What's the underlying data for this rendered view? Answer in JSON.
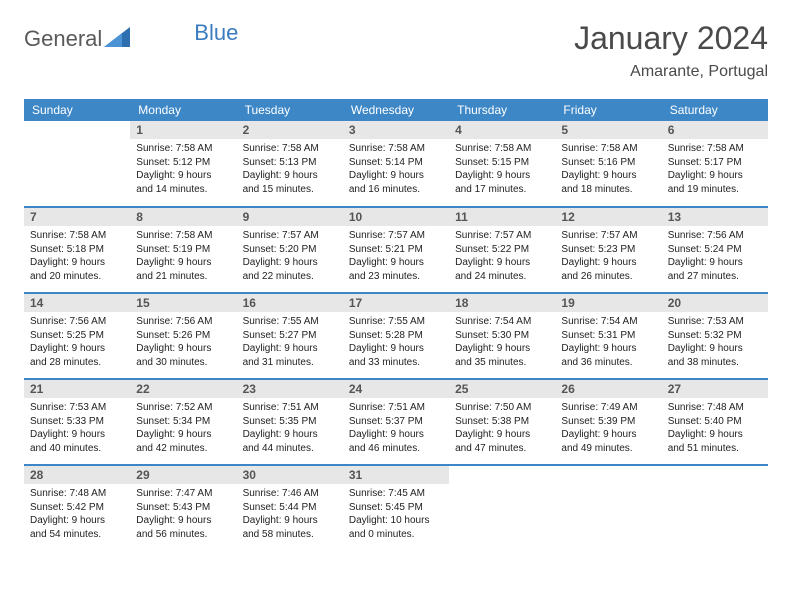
{
  "logo": {
    "t1": "General",
    "t2": "Blue"
  },
  "title": "January 2024",
  "subtitle": "Amarante, Portugal",
  "colors": {
    "header_bg": "#3d87c7",
    "header_fg": "#ffffff",
    "daynum_bg": "#e7e7e7",
    "rule": "#3d87c7",
    "title_color": "#4a4a4a"
  },
  "weekdays": [
    "Sunday",
    "Monday",
    "Tuesday",
    "Wednesday",
    "Thursday",
    "Friday",
    "Saturday"
  ],
  "start_offset": 1,
  "days": [
    {
      "n": 1,
      "sr": "7:58 AM",
      "ss": "5:12 PM",
      "dl": "9 hours and 14 minutes."
    },
    {
      "n": 2,
      "sr": "7:58 AM",
      "ss": "5:13 PM",
      "dl": "9 hours and 15 minutes."
    },
    {
      "n": 3,
      "sr": "7:58 AM",
      "ss": "5:14 PM",
      "dl": "9 hours and 16 minutes."
    },
    {
      "n": 4,
      "sr": "7:58 AM",
      "ss": "5:15 PM",
      "dl": "9 hours and 17 minutes."
    },
    {
      "n": 5,
      "sr": "7:58 AM",
      "ss": "5:16 PM",
      "dl": "9 hours and 18 minutes."
    },
    {
      "n": 6,
      "sr": "7:58 AM",
      "ss": "5:17 PM",
      "dl": "9 hours and 19 minutes."
    },
    {
      "n": 7,
      "sr": "7:58 AM",
      "ss": "5:18 PM",
      "dl": "9 hours and 20 minutes."
    },
    {
      "n": 8,
      "sr": "7:58 AM",
      "ss": "5:19 PM",
      "dl": "9 hours and 21 minutes."
    },
    {
      "n": 9,
      "sr": "7:57 AM",
      "ss": "5:20 PM",
      "dl": "9 hours and 22 minutes."
    },
    {
      "n": 10,
      "sr": "7:57 AM",
      "ss": "5:21 PM",
      "dl": "9 hours and 23 minutes."
    },
    {
      "n": 11,
      "sr": "7:57 AM",
      "ss": "5:22 PM",
      "dl": "9 hours and 24 minutes."
    },
    {
      "n": 12,
      "sr": "7:57 AM",
      "ss": "5:23 PM",
      "dl": "9 hours and 26 minutes."
    },
    {
      "n": 13,
      "sr": "7:56 AM",
      "ss": "5:24 PM",
      "dl": "9 hours and 27 minutes."
    },
    {
      "n": 14,
      "sr": "7:56 AM",
      "ss": "5:25 PM",
      "dl": "9 hours and 28 minutes."
    },
    {
      "n": 15,
      "sr": "7:56 AM",
      "ss": "5:26 PM",
      "dl": "9 hours and 30 minutes."
    },
    {
      "n": 16,
      "sr": "7:55 AM",
      "ss": "5:27 PM",
      "dl": "9 hours and 31 minutes."
    },
    {
      "n": 17,
      "sr": "7:55 AM",
      "ss": "5:28 PM",
      "dl": "9 hours and 33 minutes."
    },
    {
      "n": 18,
      "sr": "7:54 AM",
      "ss": "5:30 PM",
      "dl": "9 hours and 35 minutes."
    },
    {
      "n": 19,
      "sr": "7:54 AM",
      "ss": "5:31 PM",
      "dl": "9 hours and 36 minutes."
    },
    {
      "n": 20,
      "sr": "7:53 AM",
      "ss": "5:32 PM",
      "dl": "9 hours and 38 minutes."
    },
    {
      "n": 21,
      "sr": "7:53 AM",
      "ss": "5:33 PM",
      "dl": "9 hours and 40 minutes."
    },
    {
      "n": 22,
      "sr": "7:52 AM",
      "ss": "5:34 PM",
      "dl": "9 hours and 42 minutes."
    },
    {
      "n": 23,
      "sr": "7:51 AM",
      "ss": "5:35 PM",
      "dl": "9 hours and 44 minutes."
    },
    {
      "n": 24,
      "sr": "7:51 AM",
      "ss": "5:37 PM",
      "dl": "9 hours and 46 minutes."
    },
    {
      "n": 25,
      "sr": "7:50 AM",
      "ss": "5:38 PM",
      "dl": "9 hours and 47 minutes."
    },
    {
      "n": 26,
      "sr": "7:49 AM",
      "ss": "5:39 PM",
      "dl": "9 hours and 49 minutes."
    },
    {
      "n": 27,
      "sr": "7:48 AM",
      "ss": "5:40 PM",
      "dl": "9 hours and 51 minutes."
    },
    {
      "n": 28,
      "sr": "7:48 AM",
      "ss": "5:42 PM",
      "dl": "9 hours and 54 minutes."
    },
    {
      "n": 29,
      "sr": "7:47 AM",
      "ss": "5:43 PM",
      "dl": "9 hours and 56 minutes."
    },
    {
      "n": 30,
      "sr": "7:46 AM",
      "ss": "5:44 PM",
      "dl": "9 hours and 58 minutes."
    },
    {
      "n": 31,
      "sr": "7:45 AM",
      "ss": "5:45 PM",
      "dl": "10 hours and 0 minutes."
    }
  ],
  "labels": {
    "sunrise": "Sunrise:",
    "sunset": "Sunset:",
    "daylight": "Daylight:"
  }
}
